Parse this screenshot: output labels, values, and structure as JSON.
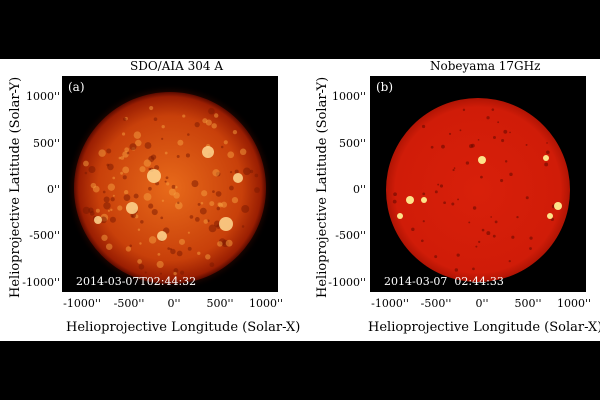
{
  "panels": [
    {
      "title": "SDO/AIA  304  A",
      "label": "(a)",
      "timestamp": "2014-03-07T02:44:32",
      "x_ticks": [
        "-1000''",
        "-500''",
        "0''",
        "500''",
        "1000''"
      ],
      "y_ticks": [
        "1000''",
        "500''",
        "0''",
        "-500''",
        "-1000''"
      ],
      "xlabel": "Helioprojective  Longitude  (Solar-X)",
      "ylabel": "Helioprojective  Latitude  (Solar-Y)"
    },
    {
      "title": "Nobeyama  17GHz",
      "label": "(b)",
      "timestamp": "2014-03-07  02:44:33",
      "x_ticks": [
        "-1000''",
        "-500''",
        "0''",
        "500''",
        "1000''"
      ],
      "y_ticks": [
        "1000''",
        "500''",
        "0''",
        "-500''",
        "-1000''"
      ],
      "xlabel": "Helioprojective  Longitude  (Solar-X)",
      "ylabel": "Helioprojective  Latitude  (Solar-Y)"
    }
  ],
  "colors": {
    "aia_core": "#e86a1a",
    "aia_limb": "#8a1400",
    "nobeyama_disk": "#d8200a",
    "background": "#000000"
  }
}
